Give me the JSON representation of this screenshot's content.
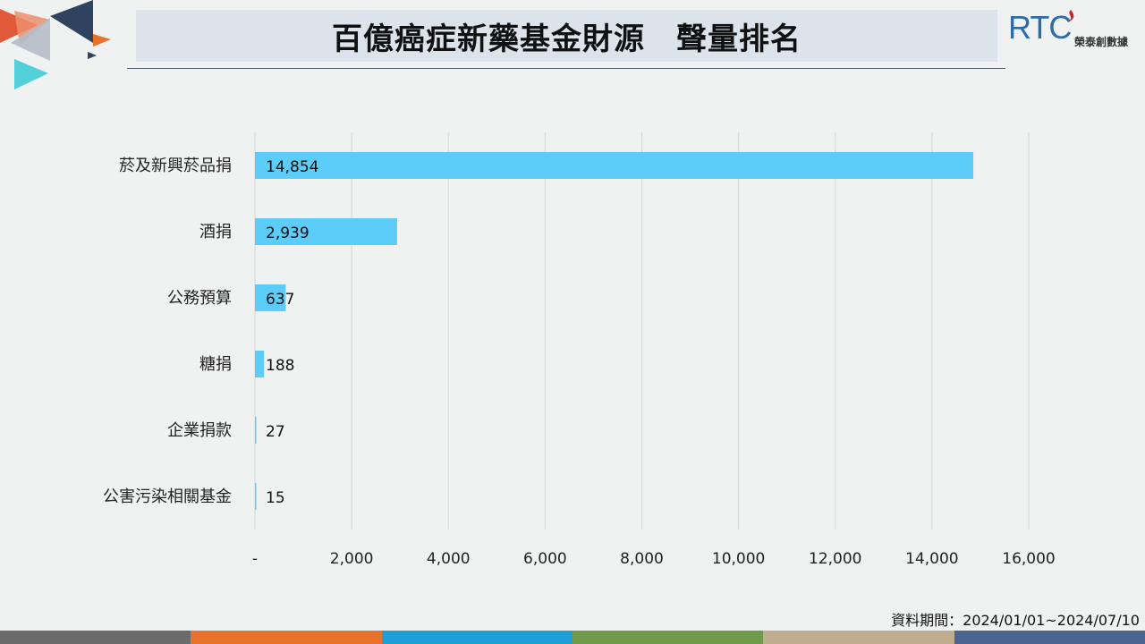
{
  "header": {
    "title": "百億癌症新藥基金財源　聲量排名",
    "logo_text": "RTC",
    "logo_subtitle": "榮泰創數據"
  },
  "chart_data": {
    "type": "bar",
    "orientation": "horizontal",
    "categories": [
      "菸及新興菸品捐",
      "酒捐",
      "公務預算",
      "糖捐",
      "企業捐款",
      "公害污染相關基金"
    ],
    "values": [
      14854,
      2939,
      637,
      188,
      27,
      15
    ],
    "value_labels": [
      "14,854",
      "2,939",
      "637",
      "188",
      "27",
      "15"
    ],
    "xlim": [
      0,
      16000
    ],
    "x_ticks": [
      0,
      2000,
      4000,
      6000,
      8000,
      10000,
      12000,
      14000,
      16000
    ],
    "x_tick_labels": [
      "-",
      "2,000",
      "4,000",
      "6,000",
      "8,000",
      "10,000",
      "12,000",
      "14,000",
      "16,000"
    ],
    "grid": true,
    "bar_color": "#5bcdf8"
  },
  "source_note": "資料期間：2024/01/01~2024/07/10",
  "colors": {
    "background": "#f0f2f1",
    "title_bar": "#dde3eb",
    "footer": [
      "#6b6b6b",
      "#e8722c",
      "#1f9fd4",
      "#6e9a4a",
      "#bfae8e",
      "#4a6690"
    ]
  }
}
